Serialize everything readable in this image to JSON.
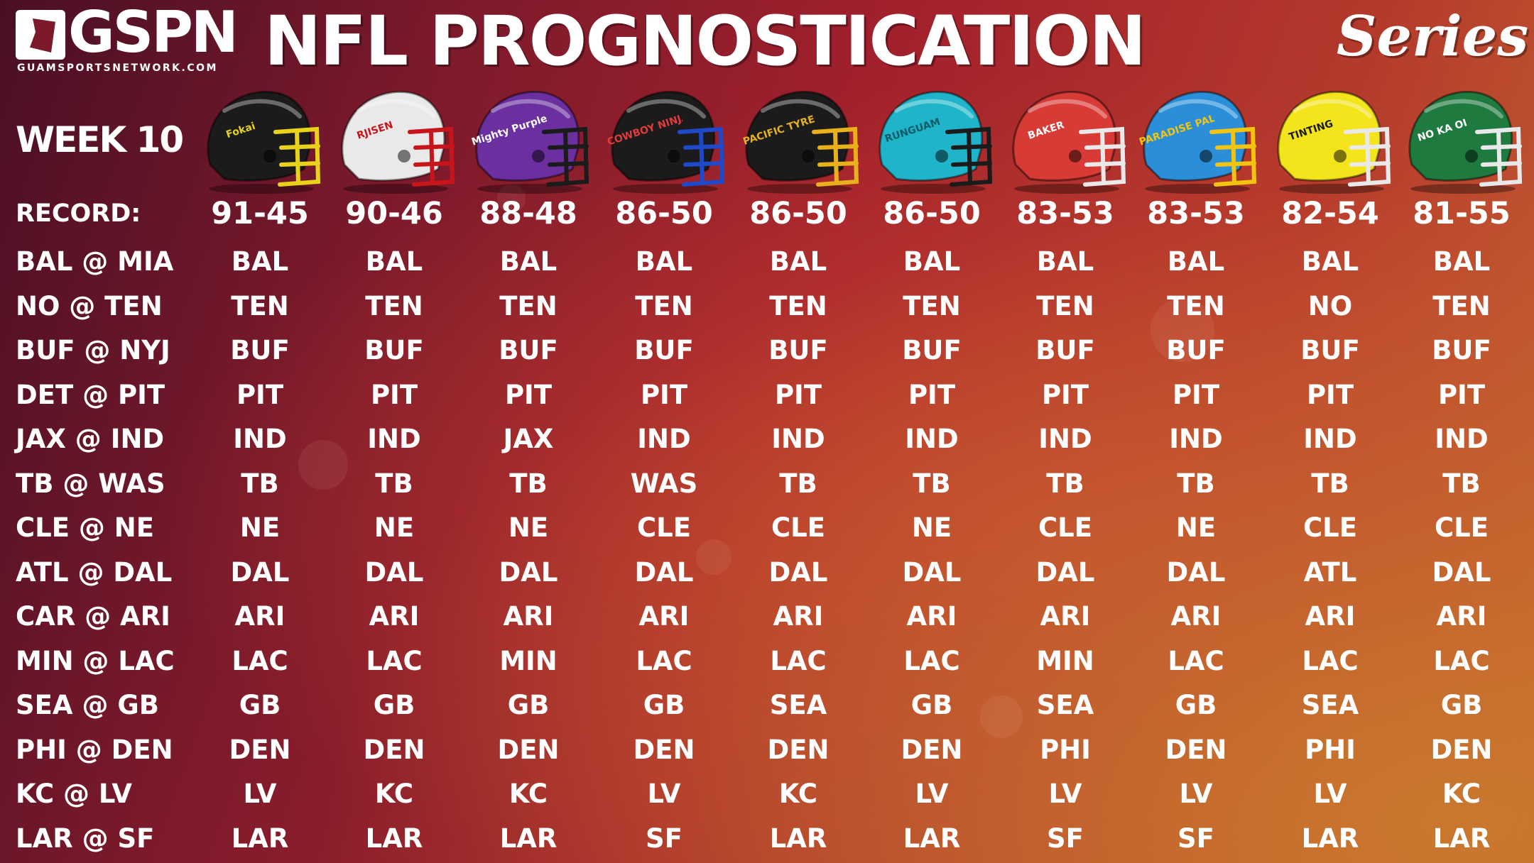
{
  "header": {
    "logo_text": "GSPN",
    "logo_sub": "GUAMSPORTSNETWORK.COM",
    "title": "NFL PROGNOSTICATION",
    "series": "Series"
  },
  "week_label": "WEEK 10",
  "record_label": "RECORD:",
  "colors": {
    "background_left": "#4a0f24",
    "background_mid": "#a3212c",
    "background_right": "#c76a30",
    "text": "#ffffff"
  },
  "helmets": [
    {
      "shell": "#1b1b1b",
      "mask": "#e8d21a",
      "logo": "Fokai",
      "logo_color": "#e8d21a"
    },
    {
      "shell": "#e9e9e9",
      "mask": "#c8151b",
      "logo": "RJISEN",
      "logo_color": "#c8151b"
    },
    {
      "shell": "#6b2fa0",
      "mask": "#1b1b1b",
      "logo": "Mighty Purple",
      "logo_color": "#ffffff"
    },
    {
      "shell": "#1b1b1b",
      "mask": "#1f49c8",
      "logo": "COWBOY NINJA",
      "logo_color": "#e23b3b"
    },
    {
      "shell": "#1b1b1b",
      "mask": "#e8b01a",
      "logo": "PACIFIC TYRE",
      "logo_color": "#e8b01a"
    },
    {
      "shell": "#1fb4c9",
      "mask": "#1b1b1b",
      "logo": "RUNGUAM",
      "logo_color": "#0c5b66"
    },
    {
      "shell": "#d83a35",
      "mask": "#e9e9e9",
      "logo": "BAKER",
      "logo_color": "#ffffff"
    },
    {
      "shell": "#2a8fd8",
      "mask": "#f2c40f",
      "logo": "PARADISE PALMS",
      "logo_color": "#f2c40f"
    },
    {
      "shell": "#f3e41c",
      "mask": "#e9e9e9",
      "logo": "TINTING",
      "logo_color": "#1b1b1b"
    },
    {
      "shell": "#1f7a40",
      "mask": "#e9e9e9",
      "logo": "NO KA OI",
      "logo_color": "#ffffff"
    }
  ],
  "records": [
    "91-45",
    "90-46",
    "88-48",
    "86-50",
    "86-50",
    "86-50",
    "83-53",
    "83-53",
    "82-54",
    "81-55"
  ],
  "games": [
    {
      "matchup": "BAL @ MIA",
      "picks": [
        "BAL",
        "BAL",
        "BAL",
        "BAL",
        "BAL",
        "BAL",
        "BAL",
        "BAL",
        "BAL",
        "BAL"
      ]
    },
    {
      "matchup": "NO @ TEN",
      "picks": [
        "TEN",
        "TEN",
        "TEN",
        "TEN",
        "TEN",
        "TEN",
        "TEN",
        "TEN",
        "NO",
        "TEN"
      ]
    },
    {
      "matchup": "BUF @ NYJ",
      "picks": [
        "BUF",
        "BUF",
        "BUF",
        "BUF",
        "BUF",
        "BUF",
        "BUF",
        "BUF",
        "BUF",
        "BUF"
      ]
    },
    {
      "matchup": "DET @ PIT",
      "picks": [
        "PIT",
        "PIT",
        "PIT",
        "PIT",
        "PIT",
        "PIT",
        "PIT",
        "PIT",
        "PIT",
        "PIT"
      ]
    },
    {
      "matchup": "JAX @ IND",
      "picks": [
        "IND",
        "IND",
        "JAX",
        "IND",
        "IND",
        "IND",
        "IND",
        "IND",
        "IND",
        "IND"
      ]
    },
    {
      "matchup": "TB @ WAS",
      "picks": [
        "TB",
        "TB",
        "TB",
        "WAS",
        "TB",
        "TB",
        "TB",
        "TB",
        "TB",
        "TB"
      ]
    },
    {
      "matchup": "CLE @ NE",
      "picks": [
        "NE",
        "NE",
        "NE",
        "CLE",
        "CLE",
        "NE",
        "CLE",
        "NE",
        "CLE",
        "CLE"
      ]
    },
    {
      "matchup": "ATL @ DAL",
      "picks": [
        "DAL",
        "DAL",
        "DAL",
        "DAL",
        "DAL",
        "DAL",
        "DAL",
        "DAL",
        "ATL",
        "DAL"
      ]
    },
    {
      "matchup": "CAR @ ARI",
      "picks": [
        "ARI",
        "ARI",
        "ARI",
        "ARI",
        "ARI",
        "ARI",
        "ARI",
        "ARI",
        "ARI",
        "ARI"
      ]
    },
    {
      "matchup": "MIN @ LAC",
      "picks": [
        "LAC",
        "LAC",
        "MIN",
        "LAC",
        "LAC",
        "LAC",
        "MIN",
        "LAC",
        "LAC",
        "LAC"
      ]
    },
    {
      "matchup": "SEA @ GB",
      "picks": [
        "GB",
        "GB",
        "GB",
        "GB",
        "SEA",
        "GB",
        "SEA",
        "GB",
        "SEA",
        "GB"
      ]
    },
    {
      "matchup": "PHI @ DEN",
      "picks": [
        "DEN",
        "DEN",
        "DEN",
        "DEN",
        "DEN",
        "DEN",
        "PHI",
        "DEN",
        "PHI",
        "DEN"
      ]
    },
    {
      "matchup": "KC @ LV",
      "picks": [
        "LV",
        "KC",
        "KC",
        "LV",
        "KC",
        "LV",
        "LV",
        "LV",
        "LV",
        "KC"
      ]
    },
    {
      "matchup": "LAR @ SF",
      "picks": [
        "LAR",
        "LAR",
        "LAR",
        "SF",
        "LAR",
        "LAR",
        "SF",
        "SF",
        "LAR",
        "LAR"
      ]
    }
  ]
}
